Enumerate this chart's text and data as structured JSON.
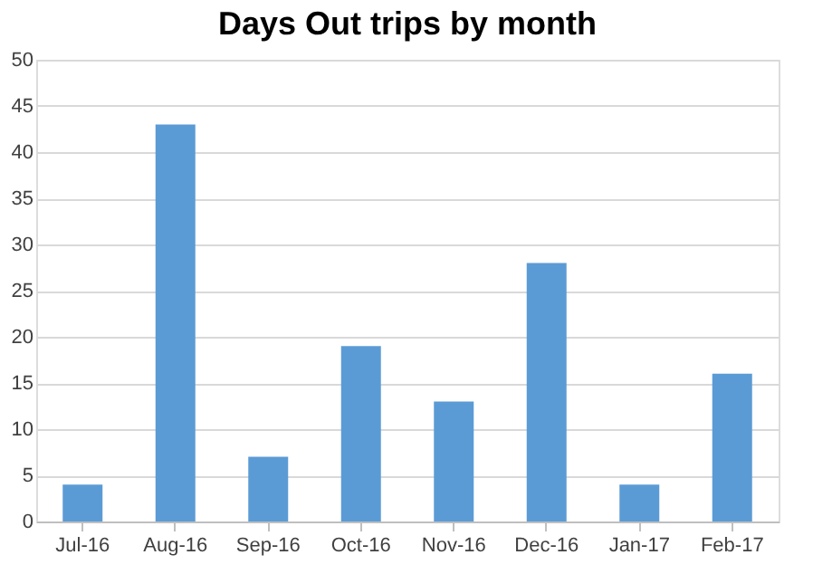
{
  "chart_data": {
    "type": "bar",
    "title": "Days Out trips by month",
    "categories": [
      "Jul-16",
      "Aug-16",
      "Sep-16",
      "Oct-16",
      "Nov-16",
      "Dec-16",
      "Jan-17",
      "Feb-17"
    ],
    "values": [
      4,
      43,
      7,
      19,
      13,
      28,
      4,
      16
    ],
    "color": "#5b9bd5",
    "ylim": [
      0,
      50
    ],
    "yticks": [
      0,
      5,
      10,
      15,
      20,
      25,
      30,
      35,
      40,
      45,
      50
    ],
    "grid": "y"
  }
}
